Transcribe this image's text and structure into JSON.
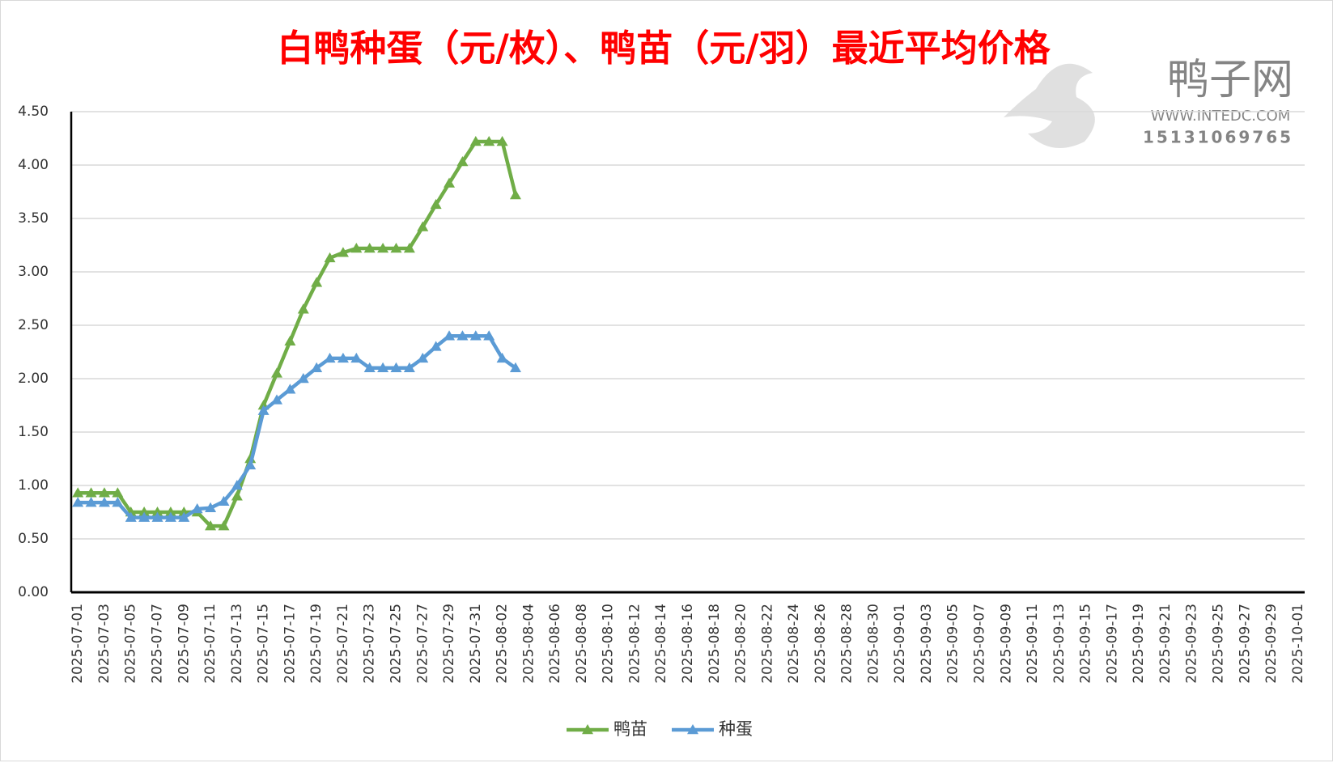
{
  "chart_data": {
    "type": "line",
    "title": "白鸭种蛋（元/枚）、鸭苗（元/羽）最近平均价格",
    "watermark": [
      "鸭子网",
      "WWW.INTEDC.COM",
      "15131069765"
    ],
    "categories": [
      "2025-07-01",
      null,
      "2025-07-03",
      null,
      "2025-07-05",
      null,
      "2025-07-07",
      null,
      "2025-07-09",
      null,
      "2025-07-11",
      null,
      "2025-07-13",
      null,
      "2025-07-15",
      null,
      "2025-07-17",
      null,
      "2025-07-19",
      null,
      "2025-07-21",
      null,
      "2025-07-23",
      null,
      "2025-07-25",
      null,
      "2025-07-27",
      null,
      "2025-07-29",
      null,
      "2025-07-31",
      null,
      "2025-08-02",
      null,
      "2025-08-04",
      null,
      "2025-08-06",
      null,
      "2025-08-08",
      null,
      "2025-08-10",
      null,
      "2025-08-12",
      null,
      "2025-08-14",
      null,
      "2025-08-16",
      null,
      "2025-08-18",
      null,
      "2025-08-20",
      null,
      "2025-08-22",
      null,
      "2025-08-24",
      null,
      "2025-08-26",
      null,
      "2025-08-28",
      null,
      "2025-08-30",
      null,
      "2025-09-01",
      null,
      "2025-09-03",
      null,
      "2025-09-05",
      null,
      "2025-09-07",
      null,
      "2025-09-09",
      null,
      "2025-09-11",
      null,
      "2025-09-13",
      null,
      "2025-09-15",
      null,
      "2025-09-17",
      null,
      "2025-09-19",
      null,
      "2025-09-21",
      null,
      "2025-09-23",
      null,
      "2025-09-25",
      null,
      "2025-09-27",
      null,
      "2025-09-29",
      null,
      "2025-10-01"
    ],
    "series": [
      {
        "name": "鸭苗",
        "color": "#70ad47",
        "values": [
          0.93,
          0.93,
          0.93,
          0.93,
          0.75,
          0.75,
          0.75,
          0.75,
          0.75,
          0.75,
          0.62,
          0.62,
          0.9,
          1.25,
          1.75,
          2.05,
          2.35,
          2.65,
          2.9,
          3.13,
          3.18,
          3.22,
          3.22,
          3.22,
          3.22,
          3.22,
          3.42,
          3.63,
          3.83,
          4.03,
          4.22,
          4.22,
          4.22,
          3.72,
          null,
          null,
          null,
          null,
          null,
          null,
          null,
          null,
          null,
          null,
          null,
          null,
          null,
          null,
          null,
          null,
          null,
          null,
          null,
          null,
          null,
          null,
          null,
          null,
          null,
          null,
          null,
          null,
          null,
          null,
          null,
          null,
          null,
          null,
          null,
          null,
          null,
          null,
          null,
          null,
          null,
          null,
          null,
          null,
          null,
          null,
          null,
          null,
          null,
          null,
          null,
          null,
          null,
          null,
          null,
          null,
          null,
          null,
          null
        ]
      },
      {
        "name": "种蛋",
        "color": "#5b9bd5",
        "values": [
          0.84,
          0.84,
          0.84,
          0.84,
          0.7,
          0.7,
          0.7,
          0.7,
          0.7,
          0.78,
          0.79,
          0.85,
          1.0,
          1.19,
          1.7,
          1.8,
          1.9,
          2.0,
          2.1,
          2.19,
          2.19,
          2.19,
          2.1,
          2.1,
          2.1,
          2.1,
          2.19,
          2.3,
          2.4,
          2.4,
          2.4,
          2.4,
          2.19,
          2.1,
          null,
          null,
          null,
          null,
          null,
          null,
          null,
          null,
          null,
          null,
          null,
          null,
          null,
          null,
          null,
          null,
          null,
          null,
          null,
          null,
          null,
          null,
          null,
          null,
          null,
          null,
          null,
          null,
          null,
          null,
          null,
          null,
          null,
          null,
          null,
          null,
          null,
          null,
          null,
          null,
          null,
          null,
          null,
          null,
          null,
          null,
          null,
          null,
          null,
          null,
          null,
          null,
          null,
          null,
          null,
          null,
          null,
          null,
          null
        ]
      }
    ],
    "ylim": [
      0,
      4.5
    ],
    "yticks": [
      {
        "value": 0,
        "label": "0.00"
      },
      {
        "value": 0.5,
        "label": "0.50"
      },
      {
        "value": 1,
        "label": "1.00"
      },
      {
        "value": 1.5,
        "label": "1.50"
      },
      {
        "value": 2,
        "label": "2.00"
      },
      {
        "value": 2.5,
        "label": "2.50"
      },
      {
        "value": 3,
        "label": "3.00"
      },
      {
        "value": 3.5,
        "label": "3.50"
      },
      {
        "value": 4,
        "label": "4.00"
      },
      {
        "value": 4.5,
        "label": "4.50"
      }
    ],
    "grid": true,
    "legend": "bottom"
  }
}
